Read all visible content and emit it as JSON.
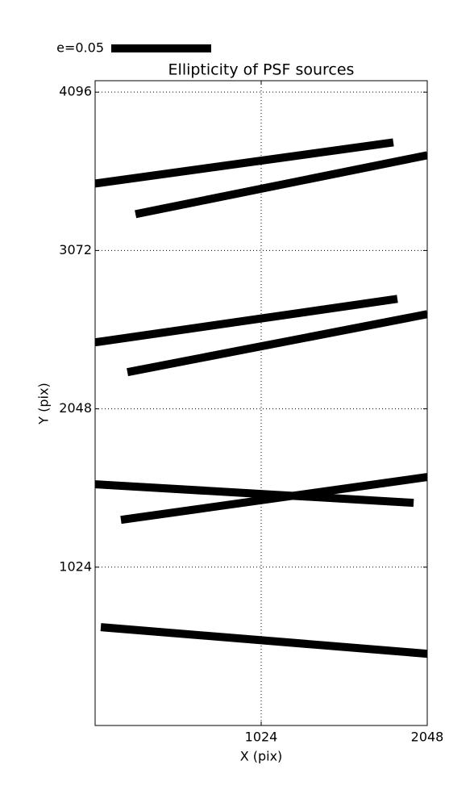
{
  "chart_data": {
    "type": "segments",
    "title": "Ellipticity of PSF sources",
    "x_label": "X (pix)",
    "y_label": "Y (pix)",
    "key_label": "e=0.05",
    "color": "#000000",
    "segments": [
      {
        "x": [
          0,
          1839
        ],
        "y": [
          3505,
          3771
        ]
      },
      {
        "x": [
          249,
          2048
        ],
        "y": [
          3307,
          3688
        ]
      },
      {
        "x": [
          0,
          1864
        ],
        "y": [
          2478,
          2759
        ]
      },
      {
        "x": [
          199,
          2048
        ],
        "y": [
          2285,
          2660
        ]
      },
      {
        "x": [
          0,
          1964
        ],
        "y": [
          1560,
          1440
        ]
      },
      {
        "x": [
          159,
          2048
        ],
        "y": [
          1330,
          1607
        ]
      },
      {
        "x": [
          35,
          2048
        ],
        "y": [
          636,
          464
        ]
      }
    ],
    "xlim": [
      0,
      2048
    ],
    "ylim": [
      0,
      4170
    ],
    "xticks": [
      1024,
      2048
    ],
    "yticks": [
      1024,
      2048,
      3072,
      4096
    ],
    "grid": true
  }
}
